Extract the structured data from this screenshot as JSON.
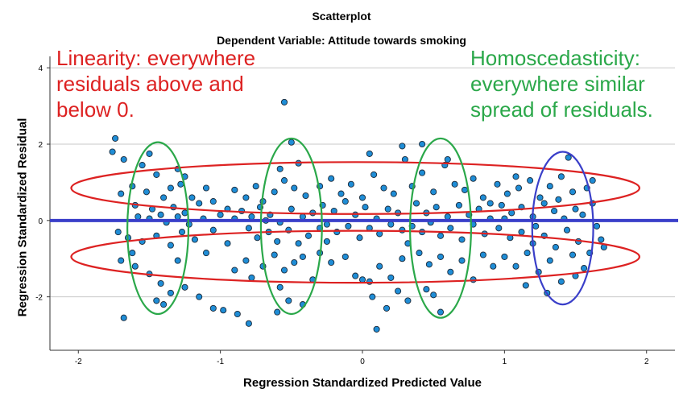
{
  "chart_data": {
    "type": "scatter",
    "title": "Scatterplot",
    "subtitle": "Dependent Variable: Attitude towards smoking",
    "xlabel": "Regression Standardized Predicted Value",
    "ylabel": "Regression Standardized Residual",
    "xlim": [
      -2.2,
      2.2
    ],
    "ylim": [
      -3.4,
      4.3
    ],
    "xticks": [
      -2,
      -1,
      0,
      1,
      2
    ],
    "yticks": [
      -2,
      0,
      2,
      4
    ],
    "xtick_labels": [
      "-2",
      "-1",
      "0",
      "1",
      "2"
    ],
    "ytick_labels": [
      "-2",
      "0",
      "2",
      "4"
    ],
    "grid": "horizontal",
    "reference_line_y": 0,
    "point_color": "#1f8dd6",
    "points": [
      [
        -1.74,
        2.15
      ],
      [
        -1.76,
        1.8
      ],
      [
        -1.68,
        1.6
      ],
      [
        -1.55,
        1.45
      ],
      [
        -1.5,
        1.75
      ],
      [
        -1.45,
        1.2
      ],
      [
        -1.3,
        1.35
      ],
      [
        -1.25,
        1.15
      ],
      [
        -1.7,
        0.7
      ],
      [
        -1.62,
        0.9
      ],
      [
        -1.52,
        0.75
      ],
      [
        -1.4,
        0.6
      ],
      [
        -1.35,
        0.85
      ],
      [
        -1.28,
        0.95
      ],
      [
        -1.2,
        0.6
      ],
      [
        -1.1,
        0.85
      ],
      [
        -1.6,
        0.4
      ],
      [
        -1.48,
        0.3
      ],
      [
        -1.42,
        0.15
      ],
      [
        -1.33,
        0.35
      ],
      [
        -1.25,
        0.2
      ],
      [
        -1.15,
        0.45
      ],
      [
        -1.05,
        0.5
      ],
      [
        -0.95,
        0.3
      ],
      [
        -1.58,
        0.1
      ],
      [
        -1.5,
        0.05
      ],
      [
        -1.38,
        -0.05
      ],
      [
        -1.3,
        0.1
      ],
      [
        -1.22,
        -0.1
      ],
      [
        -1.12,
        0.05
      ],
      [
        -1.0,
        0.15
      ],
      [
        -0.9,
        0.05
      ],
      [
        -1.72,
        -0.3
      ],
      [
        -1.65,
        -0.45
      ],
      [
        -1.55,
        -0.55
      ],
      [
        -1.45,
        -0.4
      ],
      [
        -1.35,
        -0.65
      ],
      [
        -1.27,
        -0.3
      ],
      [
        -1.18,
        -0.5
      ],
      [
        -1.05,
        -0.25
      ],
      [
        -1.7,
        -1.05
      ],
      [
        -1.6,
        -1.2
      ],
      [
        -1.5,
        -1.4
      ],
      [
        -1.42,
        -1.65
      ],
      [
        -1.35,
        -1.9
      ],
      [
        -1.25,
        -1.75
      ],
      [
        -1.15,
        -2.0
      ],
      [
        -1.45,
        -2.1
      ],
      [
        -1.68,
        -2.55
      ],
      [
        -1.4,
        -2.2
      ],
      [
        -1.05,
        -2.3
      ],
      [
        -0.98,
        -2.35
      ],
      [
        -0.88,
        -2.45
      ],
      [
        -0.8,
        -2.7
      ],
      [
        -1.3,
        -1.05
      ],
      [
        -1.62,
        -0.85
      ],
      [
        -0.9,
        0.8
      ],
      [
        -0.82,
        0.6
      ],
      [
        -0.75,
        0.9
      ],
      [
        -0.7,
        0.5
      ],
      [
        -0.62,
        0.75
      ],
      [
        -0.55,
        1.05
      ],
      [
        -0.48,
        0.85
      ],
      [
        -0.4,
        0.65
      ],
      [
        -0.85,
        0.25
      ],
      [
        -0.78,
        0.1
      ],
      [
        -0.72,
        0.35
      ],
      [
        -0.65,
        0.15
      ],
      [
        -0.58,
        -0.05
      ],
      [
        -0.5,
        0.3
      ],
      [
        -0.42,
        0.1
      ],
      [
        -0.35,
        0.2
      ],
      [
        -0.8,
        -0.2
      ],
      [
        -0.74,
        -0.45
      ],
      [
        -0.66,
        -0.3
      ],
      [
        -0.6,
        -0.55
      ],
      [
        -0.52,
        -0.25
      ],
      [
        -0.45,
        -0.6
      ],
      [
        -0.38,
        -0.4
      ],
      [
        -0.3,
        -0.2
      ],
      [
        -0.82,
        -1.05
      ],
      [
        -0.7,
        -1.2
      ],
      [
        -0.62,
        -0.9
      ],
      [
        -0.55,
        -1.3
      ],
      [
        -0.48,
        -1.1
      ],
      [
        -0.42,
        -0.95
      ],
      [
        -0.35,
        -1.55
      ],
      [
        -0.58,
        -1.75
      ],
      [
        -0.5,
        2.05
      ],
      [
        -0.58,
        1.35
      ],
      [
        -0.45,
        1.5
      ],
      [
        -0.52,
        -2.1
      ],
      [
        -0.6,
        -2.4
      ],
      [
        -0.42,
        -2.2
      ],
      [
        -0.55,
        3.1
      ],
      [
        -0.3,
        0.9
      ],
      [
        -0.22,
        1.1
      ],
      [
        -0.15,
        0.7
      ],
      [
        -0.08,
        0.95
      ],
      [
        0.0,
        0.6
      ],
      [
        0.08,
        1.2
      ],
      [
        0.15,
        0.85
      ],
      [
        0.22,
        0.7
      ],
      [
        -0.28,
        0.4
      ],
      [
        -0.2,
        0.25
      ],
      [
        -0.12,
        0.5
      ],
      [
        -0.05,
        0.15
      ],
      [
        0.02,
        0.35
      ],
      [
        0.1,
        0.05
      ],
      [
        0.18,
        0.3
      ],
      [
        0.25,
        0.2
      ],
      [
        -0.25,
        -0.1
      ],
      [
        -0.18,
        -0.3
      ],
      [
        -0.1,
        -0.15
      ],
      [
        -0.02,
        -0.45
      ],
      [
        0.05,
        -0.2
      ],
      [
        0.12,
        -0.35
      ],
      [
        0.2,
        -0.1
      ],
      [
        0.28,
        -0.25
      ],
      [
        -0.3,
        -0.85
      ],
      [
        -0.22,
        -1.1
      ],
      [
        -0.12,
        -0.95
      ],
      [
        -0.05,
        -1.45
      ],
      [
        0.05,
        -1.6
      ],
      [
        0.12,
        -1.2
      ],
      [
        0.2,
        -1.5
      ],
      [
        0.28,
        -1.0
      ],
      [
        0.0,
        -1.55
      ],
      [
        0.07,
        -2.0
      ],
      [
        0.17,
        -2.3
      ],
      [
        0.1,
        -2.85
      ],
      [
        0.25,
        -1.85
      ],
      [
        0.3,
        1.6
      ],
      [
        0.28,
        1.95
      ],
      [
        0.05,
        1.75
      ],
      [
        0.35,
        0.9
      ],
      [
        0.42,
        1.25
      ],
      [
        0.5,
        0.75
      ],
      [
        0.58,
        1.45
      ],
      [
        0.65,
        0.95
      ],
      [
        0.72,
        0.8
      ],
      [
        0.78,
        1.1
      ],
      [
        0.85,
        0.6
      ],
      [
        0.38,
        0.45
      ],
      [
        0.45,
        0.2
      ],
      [
        0.52,
        0.35
      ],
      [
        0.6,
        0.1
      ],
      [
        0.68,
        0.4
      ],
      [
        0.75,
        0.15
      ],
      [
        0.82,
        0.3
      ],
      [
        0.9,
        0.45
      ],
      [
        0.35,
        -0.15
      ],
      [
        0.42,
        -0.3
      ],
      [
        0.48,
        -0.05
      ],
      [
        0.55,
        -0.4
      ],
      [
        0.62,
        -0.2
      ],
      [
        0.7,
        -0.5
      ],
      [
        0.78,
        -0.1
      ],
      [
        0.86,
        -0.35
      ],
      [
        0.4,
        -0.85
      ],
      [
        0.47,
        -1.15
      ],
      [
        0.55,
        -0.95
      ],
      [
        0.62,
        -1.35
      ],
      [
        0.7,
        -1.05
      ],
      [
        0.78,
        -1.55
      ],
      [
        0.85,
        -0.9
      ],
      [
        0.92,
        -1.2
      ],
      [
        0.32,
        -2.1
      ],
      [
        0.45,
        -1.8
      ],
      [
        0.55,
        -2.4
      ],
      [
        0.42,
        2.0
      ],
      [
        0.6,
        1.6
      ],
      [
        0.5,
        -1.95
      ],
      [
        0.95,
        0.95
      ],
      [
        1.02,
        0.7
      ],
      [
        1.1,
        0.85
      ],
      [
        1.18,
        1.05
      ],
      [
        1.25,
        0.6
      ],
      [
        1.32,
        0.9
      ],
      [
        1.4,
        1.15
      ],
      [
        1.48,
        0.75
      ],
      [
        0.98,
        0.4
      ],
      [
        1.05,
        0.2
      ],
      [
        1.12,
        0.35
      ],
      [
        1.2,
        0.1
      ],
      [
        1.28,
        0.45
      ],
      [
        1.35,
        0.25
      ],
      [
        1.42,
        0.05
      ],
      [
        1.5,
        0.3
      ],
      [
        0.96,
        -0.2
      ],
      [
        1.04,
        -0.45
      ],
      [
        1.12,
        -0.3
      ],
      [
        1.2,
        -0.6
      ],
      [
        1.28,
        -0.4
      ],
      [
        1.36,
        -0.7
      ],
      [
        1.44,
        -0.25
      ],
      [
        1.52,
        -0.55
      ],
      [
        1.0,
        -0.95
      ],
      [
        1.08,
        -1.2
      ],
      [
        1.16,
        -0.85
      ],
      [
        1.24,
        -1.35
      ],
      [
        1.32,
        -1.05
      ],
      [
        1.4,
        -1.6
      ],
      [
        1.48,
        -0.9
      ],
      [
        1.56,
        -1.25
      ],
      [
        1.58,
        0.85
      ],
      [
        1.62,
        0.45
      ],
      [
        1.65,
        -0.15
      ],
      [
        1.68,
        -0.5
      ],
      [
        1.7,
        -0.7
      ],
      [
        1.55,
        0.15
      ],
      [
        1.6,
        -0.85
      ],
      [
        1.45,
        1.65
      ],
      [
        1.3,
        -1.9
      ],
      [
        1.15,
        -1.7
      ],
      [
        1.5,
        -1.45
      ],
      [
        1.22,
        -0.15
      ],
      [
        1.38,
        0.55
      ],
      [
        1.08,
        1.15
      ],
      [
        1.62,
        1.05
      ],
      [
        1.0,
        0.05
      ],
      [
        -1.1,
        -0.85
      ],
      [
        -0.95,
        -0.6
      ],
      [
        -0.9,
        -1.3
      ],
      [
        -0.78,
        -1.5
      ],
      [
        -0.68,
        0.0
      ],
      [
        -0.25,
        -0.55
      ],
      [
        0.32,
        -0.6
      ],
      [
        0.9,
        0.05
      ]
    ]
  },
  "annotations": {
    "linearity": "Linearity: everywhere residuals above and below 0.",
    "homoscedasticity": "Homoscedasticity: everywhere similar spread of residuals."
  },
  "colors": {
    "reference_line": "#3a3fc9",
    "red_ellipse": "#dd2222",
    "green_ellipse": "#2ba84a",
    "blue_ellipse": "#3a3fc9",
    "red_text": "#dd2222",
    "green_text": "#2ba84a"
  }
}
